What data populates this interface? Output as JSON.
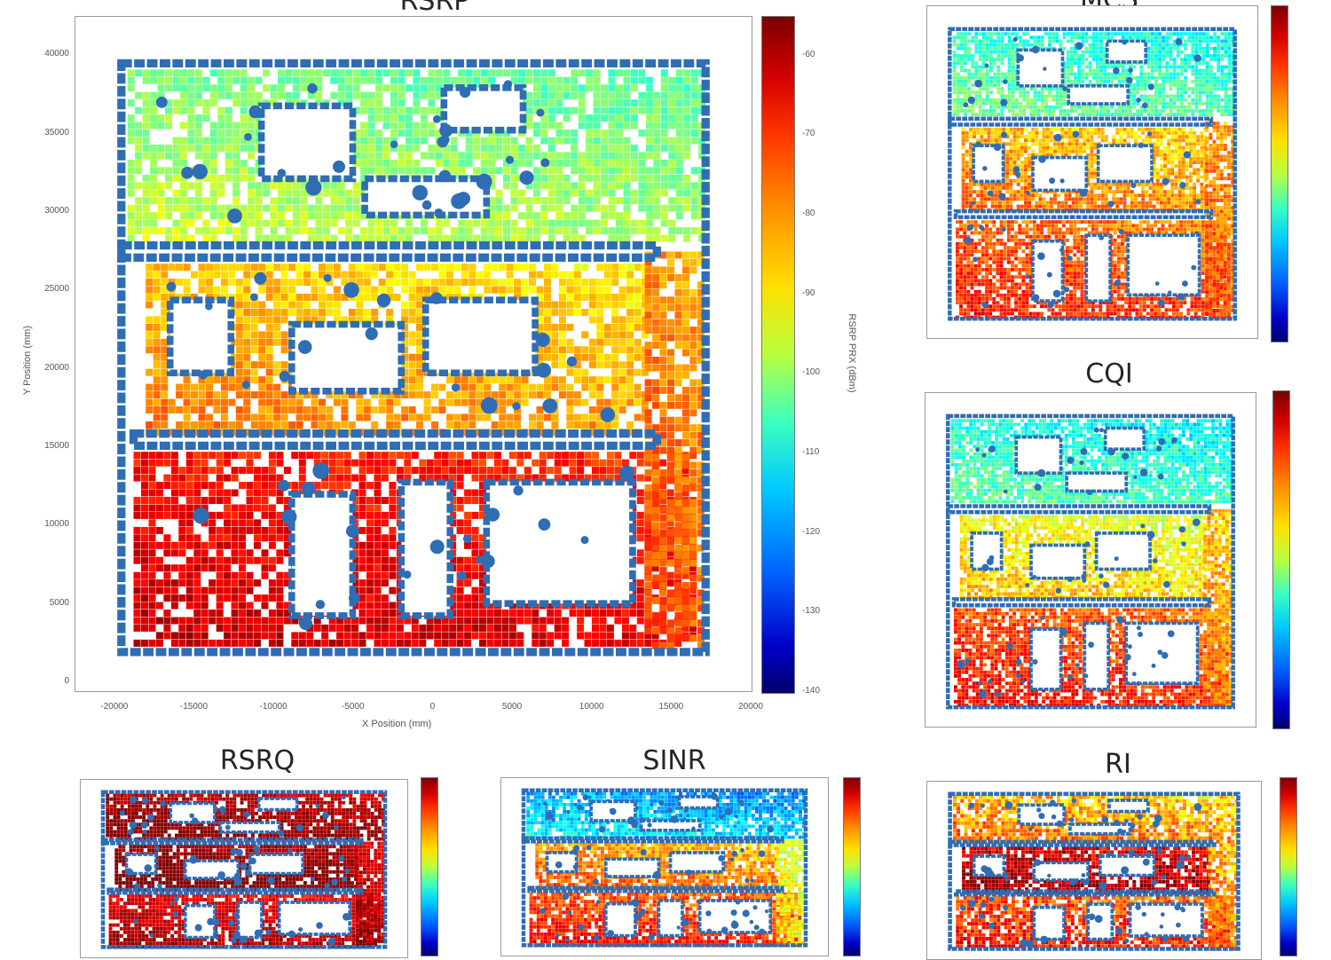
{
  "chart_data": [
    {
      "type": "scatter",
      "title": "RSRP",
      "xlabel": "X Position (mm)",
      "ylabel": "Y Position (mm)",
      "colorbar_label": "RSRP PRX (dBm)",
      "xlim": [
        -22500,
        20000
      ],
      "ylim": [
        -500,
        42500
      ],
      "xticks": [
        "-20000",
        "-15000",
        "-10000",
        "-5000",
        "0",
        "5000",
        "10000",
        "15000",
        "20000"
      ],
      "yticks": [
        "0",
        "5000",
        "10000",
        "15000",
        "20000",
        "25000",
        "30000",
        "35000",
        "40000"
      ],
      "colorbar_ticks": [
        "-60",
        "-70",
        "-80",
        "-90",
        "-100",
        "-110",
        "-120",
        "-130",
        "-140"
      ],
      "colorbar_range": [
        -140,
        -55
      ],
      "colormap": "jet"
    },
    {
      "type": "scatter",
      "title": "MCS",
      "colormap": "jet"
    },
    {
      "type": "scatter",
      "title": "CQI",
      "colormap": "jet"
    },
    {
      "type": "scatter",
      "title": "RSRQ",
      "colormap": "jet"
    },
    {
      "type": "scatter",
      "title": "SINR",
      "colormap": "jet"
    },
    {
      "type": "scatter",
      "title": "RI",
      "colormap": "jet"
    }
  ],
  "colors": {
    "wall": "#2f6db4",
    "frame": "#9a9a9a"
  }
}
